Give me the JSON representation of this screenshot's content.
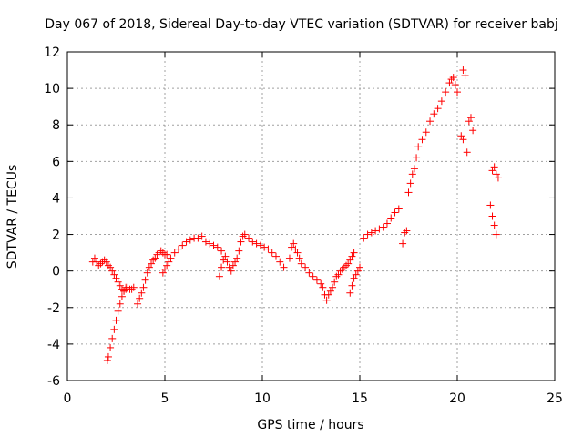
{
  "chart_data": {
    "type": "scatter",
    "title": "Day 067 of 2018, Sidereal Day-to-day VTEC variation (SDTVAR) for receiver babj",
    "xlabel": "GPS time / hours",
    "ylabel": "SDTVAR / TECUs",
    "xlim": [
      0,
      25
    ],
    "ylim": [
      -6,
      12
    ],
    "xticks": [
      "0",
      "5",
      "10",
      "15",
      "20",
      "25"
    ],
    "yticks": [
      "-6",
      "-4",
      "-2",
      "0",
      "2",
      "4",
      "6",
      "8",
      "10",
      "12"
    ],
    "grid": true,
    "marker": "+",
    "color": "#ff0000",
    "series": [
      {
        "name": "SDTVAR",
        "x": [
          1.3,
          1.4,
          1.5,
          1.6,
          1.7,
          1.8,
          1.9,
          2.0,
          2.1,
          2.2,
          2.3,
          2.4,
          2.5,
          2.6,
          2.7,
          2.8,
          2.9,
          3.0,
          2.05,
          2.1,
          2.2,
          2.3,
          2.4,
          2.5,
          2.6,
          2.7,
          2.8,
          2.9,
          3.0,
          3.1,
          3.2,
          3.3,
          3.4,
          3.6,
          3.7,
          3.8,
          3.9,
          4.0,
          4.1,
          4.2,
          4.3,
          4.4,
          4.5,
          4.6,
          4.7,
          4.8,
          4.9,
          5.0,
          5.1,
          4.9,
          5.0,
          5.1,
          5.2,
          5.3,
          5.5,
          5.7,
          5.9,
          6.1,
          6.3,
          6.5,
          6.7,
          6.9,
          7.1,
          7.3,
          7.5,
          7.7,
          7.9,
          7.8,
          7.9,
          8.0,
          8.1,
          8.2,
          8.3,
          8.4,
          8.5,
          8.6,
          8.7,
          8.8,
          8.9,
          9.0,
          9.1,
          9.3,
          9.5,
          9.7,
          9.9,
          10.1,
          10.3,
          10.5,
          10.7,
          10.9,
          11.1,
          11.4,
          11.5,
          11.6,
          11.7,
          11.8,
          11.9,
          12.0,
          12.2,
          12.4,
          12.6,
          12.8,
          13.0,
          13.1,
          13.2,
          13.3,
          13.4,
          13.5,
          13.6,
          13.7,
          13.8,
          13.9,
          14.0,
          14.1,
          14.2,
          14.3,
          14.4,
          14.5,
          14.6,
          14.7,
          14.5,
          14.6,
          14.7,
          14.8,
          14.9,
          15.0,
          15.2,
          15.4,
          15.6,
          15.8,
          16.0,
          16.2,
          16.4,
          16.6,
          16.8,
          17.0,
          17.2,
          17.3,
          17.4,
          17.5,
          17.6,
          17.7,
          17.8,
          17.9,
          18.0,
          18.2,
          18.4,
          18.6,
          18.8,
          19.0,
          19.2,
          19.4,
          19.6,
          19.7,
          19.8,
          19.9,
          20.0,
          20.3,
          20.4,
          20.2,
          20.3,
          20.5,
          20.6,
          20.7,
          20.8,
          21.7,
          21.8,
          21.9,
          22.0,
          21.8,
          21.9,
          22.0,
          22.1
        ],
        "values": [
          0.5,
          0.7,
          0.5,
          0.3,
          0.4,
          0.5,
          0.6,
          0.5,
          0.3,
          0.2,
          0.0,
          -0.2,
          -0.4,
          -0.6,
          -0.8,
          -1.0,
          -1.1,
          -1.0,
          -4.9,
          -4.7,
          -4.2,
          -3.7,
          -3.2,
          -2.7,
          -2.2,
          -1.8,
          -1.4,
          -1.1,
          -0.9,
          -0.9,
          -1.0,
          -1.0,
          -0.9,
          -1.8,
          -1.5,
          -1.2,
          -0.9,
          -0.5,
          -0.1,
          0.2,
          0.4,
          0.6,
          0.7,
          0.9,
          1.0,
          1.1,
          1.0,
          0.9,
          0.9,
          -0.1,
          0.1,
          0.3,
          0.5,
          0.7,
          1.0,
          1.2,
          1.4,
          1.6,
          1.7,
          1.8,
          1.8,
          1.9,
          1.6,
          1.5,
          1.4,
          1.3,
          1.1,
          -0.3,
          0.2,
          0.6,
          0.8,
          0.5,
          0.2,
          0.0,
          0.3,
          0.5,
          0.7,
          1.1,
          1.6,
          1.9,
          2.0,
          1.8,
          1.6,
          1.5,
          1.4,
          1.3,
          1.2,
          1.0,
          0.8,
          0.5,
          0.2,
          0.7,
          1.3,
          1.5,
          1.2,
          1.0,
          0.7,
          0.4,
          0.2,
          -0.1,
          -0.3,
          -0.5,
          -0.7,
          -0.9,
          -1.3,
          -1.6,
          -1.3,
          -1.1,
          -0.9,
          -0.6,
          -0.3,
          -0.2,
          0.0,
          0.1,
          0.2,
          0.3,
          0.4,
          0.6,
          0.8,
          1.0,
          -1.2,
          -0.8,
          -0.4,
          -0.2,
          0.0,
          0.2,
          1.8,
          2.0,
          2.1,
          2.2,
          2.3,
          2.4,
          2.6,
          2.9,
          3.2,
          3.4,
          1.5,
          2.1,
          2.2,
          4.3,
          4.8,
          5.3,
          5.6,
          6.2,
          6.8,
          7.2,
          7.6,
          8.2,
          8.6,
          8.9,
          9.3,
          9.8,
          10.3,
          10.5,
          10.6,
          10.2,
          9.8,
          11.0,
          10.7,
          7.4,
          7.2,
          6.5,
          8.2,
          8.4,
          7.7,
          3.6,
          3.0,
          2.5,
          2.0,
          5.5,
          5.7,
          5.3,
          5.1
        ]
      }
    ]
  }
}
